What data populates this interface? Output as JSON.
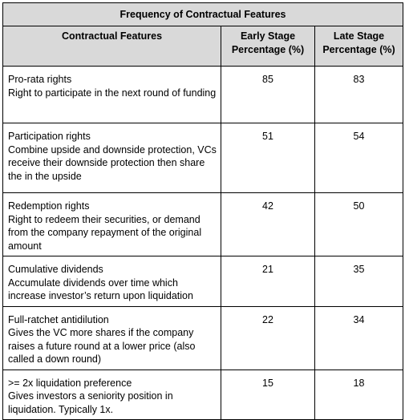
{
  "table": {
    "title": "Frequency of Contractual Features",
    "headers": {
      "feature": "Contractual Features",
      "early": "Early Stage Percentage (%)",
      "late": "Late Stage Percentage (%)"
    },
    "rows": [
      {
        "name": "Pro-rata rights",
        "description": "Right to participate in the next round of funding",
        "early": "85",
        "late": "83"
      },
      {
        "name": "Participation rights",
        "description": "Combine upside and downside protection, VCs receive their downside protection then share the in the upside",
        "early": "51",
        "late": "54"
      },
      {
        "name": "Redemption rights",
        "description": "Right to redeem their securities, or demand from the company repayment of the original amount",
        "early": "42",
        "late": "50"
      },
      {
        "name": "Cumulative dividends",
        "description": "Accumulate dividends over time which increase investor’s return upon liquidation",
        "early": "21",
        "late": "35"
      },
      {
        "name": "Full-ratchet antidilution",
        "description": "Gives the VC more shares if the company raises a future round at a lower price (also called a down round)",
        "early": "22",
        "late": "34"
      },
      {
        "name": ">= 2x liquidation preference",
        "description": "Gives investors a seniority position in liquidation. Typically 1x.",
        "early": "15",
        "late": "18"
      }
    ]
  }
}
